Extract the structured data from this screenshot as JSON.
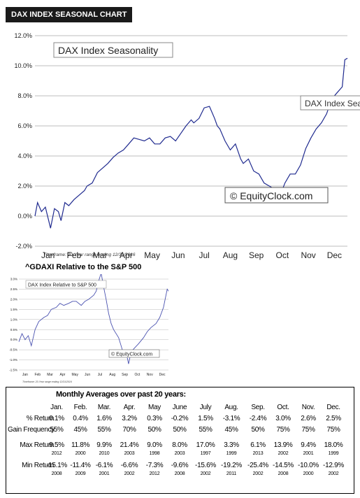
{
  "header": {
    "title": "DAX INDEX SEASONAL CHART"
  },
  "chart_data": [
    {
      "type": "line",
      "title": "DAX Index Seasonality",
      "xlabel": "",
      "ylabel": "",
      "categories": [
        "Jan",
        "Feb",
        "Mar",
        "Apr",
        "May",
        "Jun",
        "Jul",
        "Aug",
        "Sep",
        "Oct",
        "Nov",
        "Dec"
      ],
      "y_ticks": [
        "12.0%",
        "10.0%",
        "8.0%",
        "6.0%",
        "4.0%",
        "2.0%",
        "0.0%",
        "-2.0%"
      ],
      "ylim": [
        -2,
        12
      ],
      "grid": true,
      "watermark": "© EquityClock.com",
      "tooltip": "DAX Index Seas",
      "footnote": "Timeframe: 20-Year range ending 12/31/2016",
      "series": [
        {
          "name": "DAX Index Seasonality",
          "color": "#1f2a8f",
          "x": [
            0,
            0.1,
            0.25,
            0.4,
            0.6,
            0.75,
            0.9,
            1.0,
            1.15,
            1.3,
            1.5,
            1.7,
            1.9,
            2.0,
            2.2,
            2.4,
            2.6,
            2.8,
            3.0,
            3.2,
            3.4,
            3.6,
            3.8,
            4.0,
            4.2,
            4.4,
            4.6,
            4.8,
            5.0,
            5.2,
            5.4,
            5.6,
            5.8,
            6.0,
            6.1,
            6.3,
            6.5,
            6.7,
            6.9,
            7.0,
            7.1,
            7.3,
            7.5,
            7.7,
            7.9,
            8.0,
            8.2,
            8.4,
            8.6,
            8.8,
            9.0,
            9.2,
            9.4,
            9.6,
            9.8,
            10.0,
            10.2,
            10.4,
            10.6,
            10.8,
            11.0,
            11.2,
            11.4,
            11.6,
            11.8,
            11.9,
            12.0
          ],
          "values": [
            0.0,
            0.9,
            0.3,
            0.6,
            -0.8,
            0.5,
            0.3,
            -0.3,
            0.9,
            0.7,
            1.1,
            1.4,
            1.7,
            2.0,
            2.2,
            2.9,
            3.2,
            3.5,
            3.9,
            4.2,
            4.4,
            4.8,
            5.2,
            5.1,
            5.0,
            5.2,
            4.8,
            4.8,
            5.2,
            5.3,
            5.0,
            5.5,
            6.0,
            6.4,
            6.2,
            6.5,
            7.2,
            7.3,
            6.5,
            6.0,
            5.8,
            5.0,
            4.4,
            4.8,
            3.8,
            3.5,
            3.8,
            3.0,
            2.8,
            2.2,
            2.0,
            1.8,
            1.3,
            2.2,
            2.8,
            2.8,
            3.4,
            4.5,
            5.2,
            5.8,
            6.2,
            6.8,
            7.8,
            8.2,
            8.6,
            10.4,
            10.5
          ]
        }
      ]
    },
    {
      "type": "line",
      "title": "^GDAXI Relative to the S&P 500",
      "chart_label": "DAX Index Relative to S&P 500",
      "categories": [
        "Jan",
        "Feb",
        "Mar",
        "Apr",
        "May",
        "Jun",
        "Jul",
        "Aug",
        "Sep",
        "Oct",
        "Nov",
        "Dec"
      ],
      "y_ticks": [
        "3.0%",
        "2.5%",
        "2.0%",
        "1.5%",
        "1.0%",
        "0.5%",
        "0.0%",
        "-0.5%",
        "-1.0%",
        "-1.5%"
      ],
      "ylim": [
        -1.5,
        3.0
      ],
      "grid": true,
      "watermark": "© EquityClock.com",
      "footnote": "Timeframe: 20-Year range ending 12/31/2016",
      "series": [
        {
          "name": "DAX Index Relative to S&P 500",
          "color": "#4a52b0",
          "x": [
            0,
            0.25,
            0.5,
            0.75,
            1.0,
            1.3,
            1.6,
            2.0,
            2.3,
            2.6,
            3.0,
            3.3,
            3.6,
            4.0,
            4.3,
            4.6,
            5.0,
            5.3,
            5.6,
            6.0,
            6.2,
            6.4,
            6.6,
            6.8,
            7.0,
            7.2,
            7.4,
            7.6,
            8.0,
            8.3,
            8.6,
            8.8,
            9.0,
            9.3,
            9.6,
            10.0,
            10.3,
            10.6,
            11.0,
            11.3,
            11.6,
            11.9,
            12.0
          ],
          "values": [
            -0.1,
            0.3,
            0.0,
            0.2,
            -0.3,
            0.5,
            0.9,
            1.1,
            1.2,
            1.5,
            1.6,
            1.8,
            1.7,
            1.8,
            1.9,
            1.9,
            1.7,
            1.9,
            2.0,
            2.2,
            2.4,
            2.9,
            3.3,
            2.6,
            2.0,
            1.3,
            0.8,
            0.5,
            0.1,
            -0.5,
            -0.6,
            -1.2,
            -0.6,
            -0.4,
            -0.2,
            0.1,
            0.4,
            0.6,
            0.8,
            1.1,
            1.6,
            2.5,
            2.4
          ]
        }
      ]
    },
    {
      "type": "table",
      "title": "Monthly Averages over past 20 years:",
      "columns": [
        "Jan.",
        "Feb.",
        "Mar.",
        "Apr.",
        "May",
        "June",
        "July",
        "Aug.",
        "Sep.",
        "Oct.",
        "Nov.",
        "Dec."
      ],
      "rows": [
        {
          "label": "% Return",
          "values": [
            "0.1%",
            "0.4%",
            "1.6%",
            "3.2%",
            "0.3%",
            "-0.2%",
            "1.5%",
            "-3.1%",
            "-2.4%",
            "3.0%",
            "2.6%",
            "2.5%"
          ]
        },
        {
          "label": "Gain Frequency",
          "values": [
            "55%",
            "45%",
            "55%",
            "70%",
            "50%",
            "50%",
            "55%",
            "45%",
            "50%",
            "75%",
            "75%",
            "75%"
          ]
        },
        {
          "label": "Max Return",
          "values": [
            "9.5%",
            "11.8%",
            "9.9%",
            "21.4%",
            "9.0%",
            "8.0%",
            "17.0%",
            "3.3%",
            "6.1%",
            "13.9%",
            "9.4%",
            "18.0%"
          ],
          "years": [
            "2012",
            "2000",
            "2010",
            "2003",
            "1998",
            "2003",
            "1997",
            "1999",
            "2013",
            "2002",
            "2001",
            "1999"
          ]
        },
        {
          "label": "Min Return",
          "values": [
            "-15.1%",
            "-11.4%",
            "-6.1%",
            "-6.6%",
            "-7.3%",
            "-9.6%",
            "-15.6%",
            "-19.2%",
            "-25.4%",
            "-14.5%",
            "-10.0%",
            "-12.9%"
          ],
          "years": [
            "2008",
            "2009",
            "2001",
            "2002",
            "2012",
            "2008",
            "2002",
            "2011",
            "2002",
            "2008",
            "2000",
            "2002"
          ]
        }
      ]
    }
  ]
}
